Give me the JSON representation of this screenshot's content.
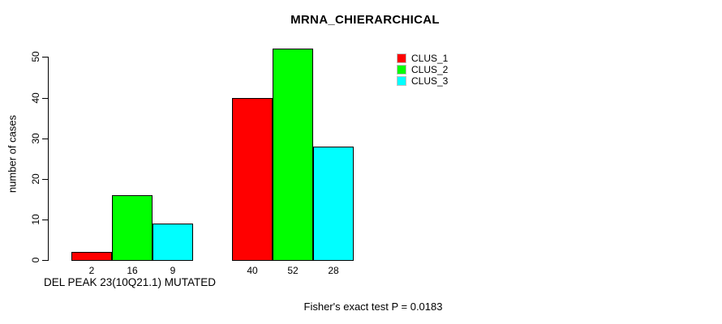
{
  "chart_data": {
    "type": "bar",
    "title": "MRNA_CHIERARCHICAL",
    "ylabel": "number of cases",
    "xlabel": "DEL PEAK 23(10Q21.1) MUTATED",
    "footer": "Fisher's exact test P = 0.0183",
    "ylim": [
      0,
      50
    ],
    "yticks": [
      0,
      10,
      20,
      30,
      40,
      50
    ],
    "grid": false,
    "bar_value_labels_shown": true,
    "categories": [
      "DEL PEAK 23(10Q21.1) MUTATED",
      ""
    ],
    "series": [
      {
        "name": "CLUS_1",
        "color": "#ff0000",
        "values": [
          2,
          40
        ]
      },
      {
        "name": "CLUS_2",
        "color": "#00ff00",
        "values": [
          16,
          52
        ]
      },
      {
        "name": "CLUS_3",
        "color": "#00ffff",
        "values": [
          9,
          28
        ]
      }
    ],
    "legend": {
      "position": "top-right",
      "entries": [
        {
          "label": "CLUS_1",
          "color": "#ff0000"
        },
        {
          "label": "CLUS_2",
          "color": "#00ff00"
        },
        {
          "label": "CLUS_3",
          "color": "#00ffff"
        }
      ]
    },
    "colors": {
      "axis": "#000000",
      "text": "#000000",
      "background": "#ffffff"
    }
  }
}
